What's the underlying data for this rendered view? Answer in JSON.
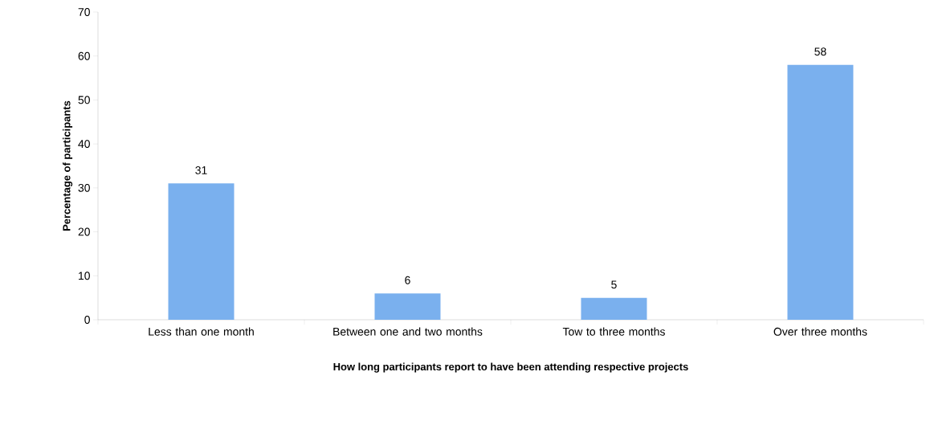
{
  "chart_data": {
    "type": "bar",
    "xlabel": "How long participants report to have been attending respective projects",
    "ylabel": "Percentage of participants",
    "categories": [
      "Less than one month",
      "Between one and two months",
      "Tow to three months",
      "Over three months"
    ],
    "values": [
      31,
      6,
      5,
      58
    ],
    "color": "#7ab0ee",
    "data_labels": true,
    "grid": false,
    "ylim": [
      0,
      70
    ],
    "yticks": [
      0,
      10,
      20,
      30,
      40,
      50,
      60,
      70
    ]
  }
}
